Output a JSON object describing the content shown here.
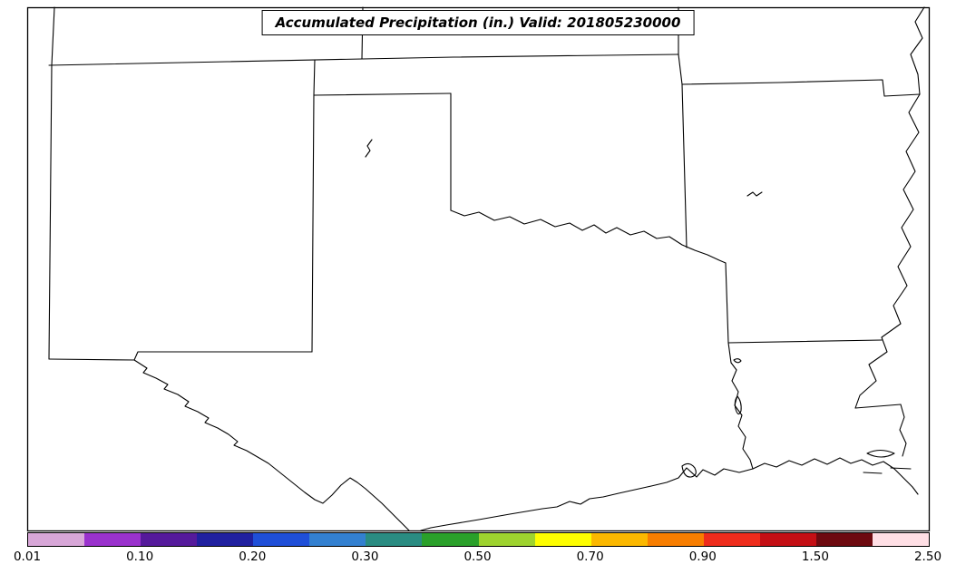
{
  "title_bar": {
    "text": "Accumulated Precipitation (in.) Valid: 201805230000"
  },
  "map": {
    "background_color": "#ffffff",
    "line_color": "#000000",
    "regions_depicted": [
      "Colorado",
      "Kansas",
      "Missouri",
      "New Mexico",
      "Oklahoma",
      "Arkansas",
      "Texas",
      "Louisiana",
      "Mississippi"
    ]
  },
  "chart_data": {
    "type": "map",
    "title": "Accumulated Precipitation (in.) Valid: 201805230000",
    "units": "in.",
    "valid_time": "201805230000",
    "colorbar": {
      "orientation": "horizontal",
      "position": "bottom",
      "tick_labels": [
        "0.01",
        "0.10",
        "0.20",
        "0.30",
        "0.50",
        "0.70",
        "0.90",
        "1.50",
        "2.50"
      ],
      "segment_colors": [
        "#d8a7d8",
        "#9a32cd",
        "#551a9b",
        "#20209f",
        "#1f4fd8",
        "#3380d0",
        "#2a8c82",
        "#2aa02a",
        "#9ed32f",
        "#fdfd00",
        "#fbb800",
        "#f87e00",
        "#ee2c1c",
        "#c40f14",
        "#6d0a10",
        "#ffdfe5"
      ],
      "outline_color": "#000000"
    }
  }
}
